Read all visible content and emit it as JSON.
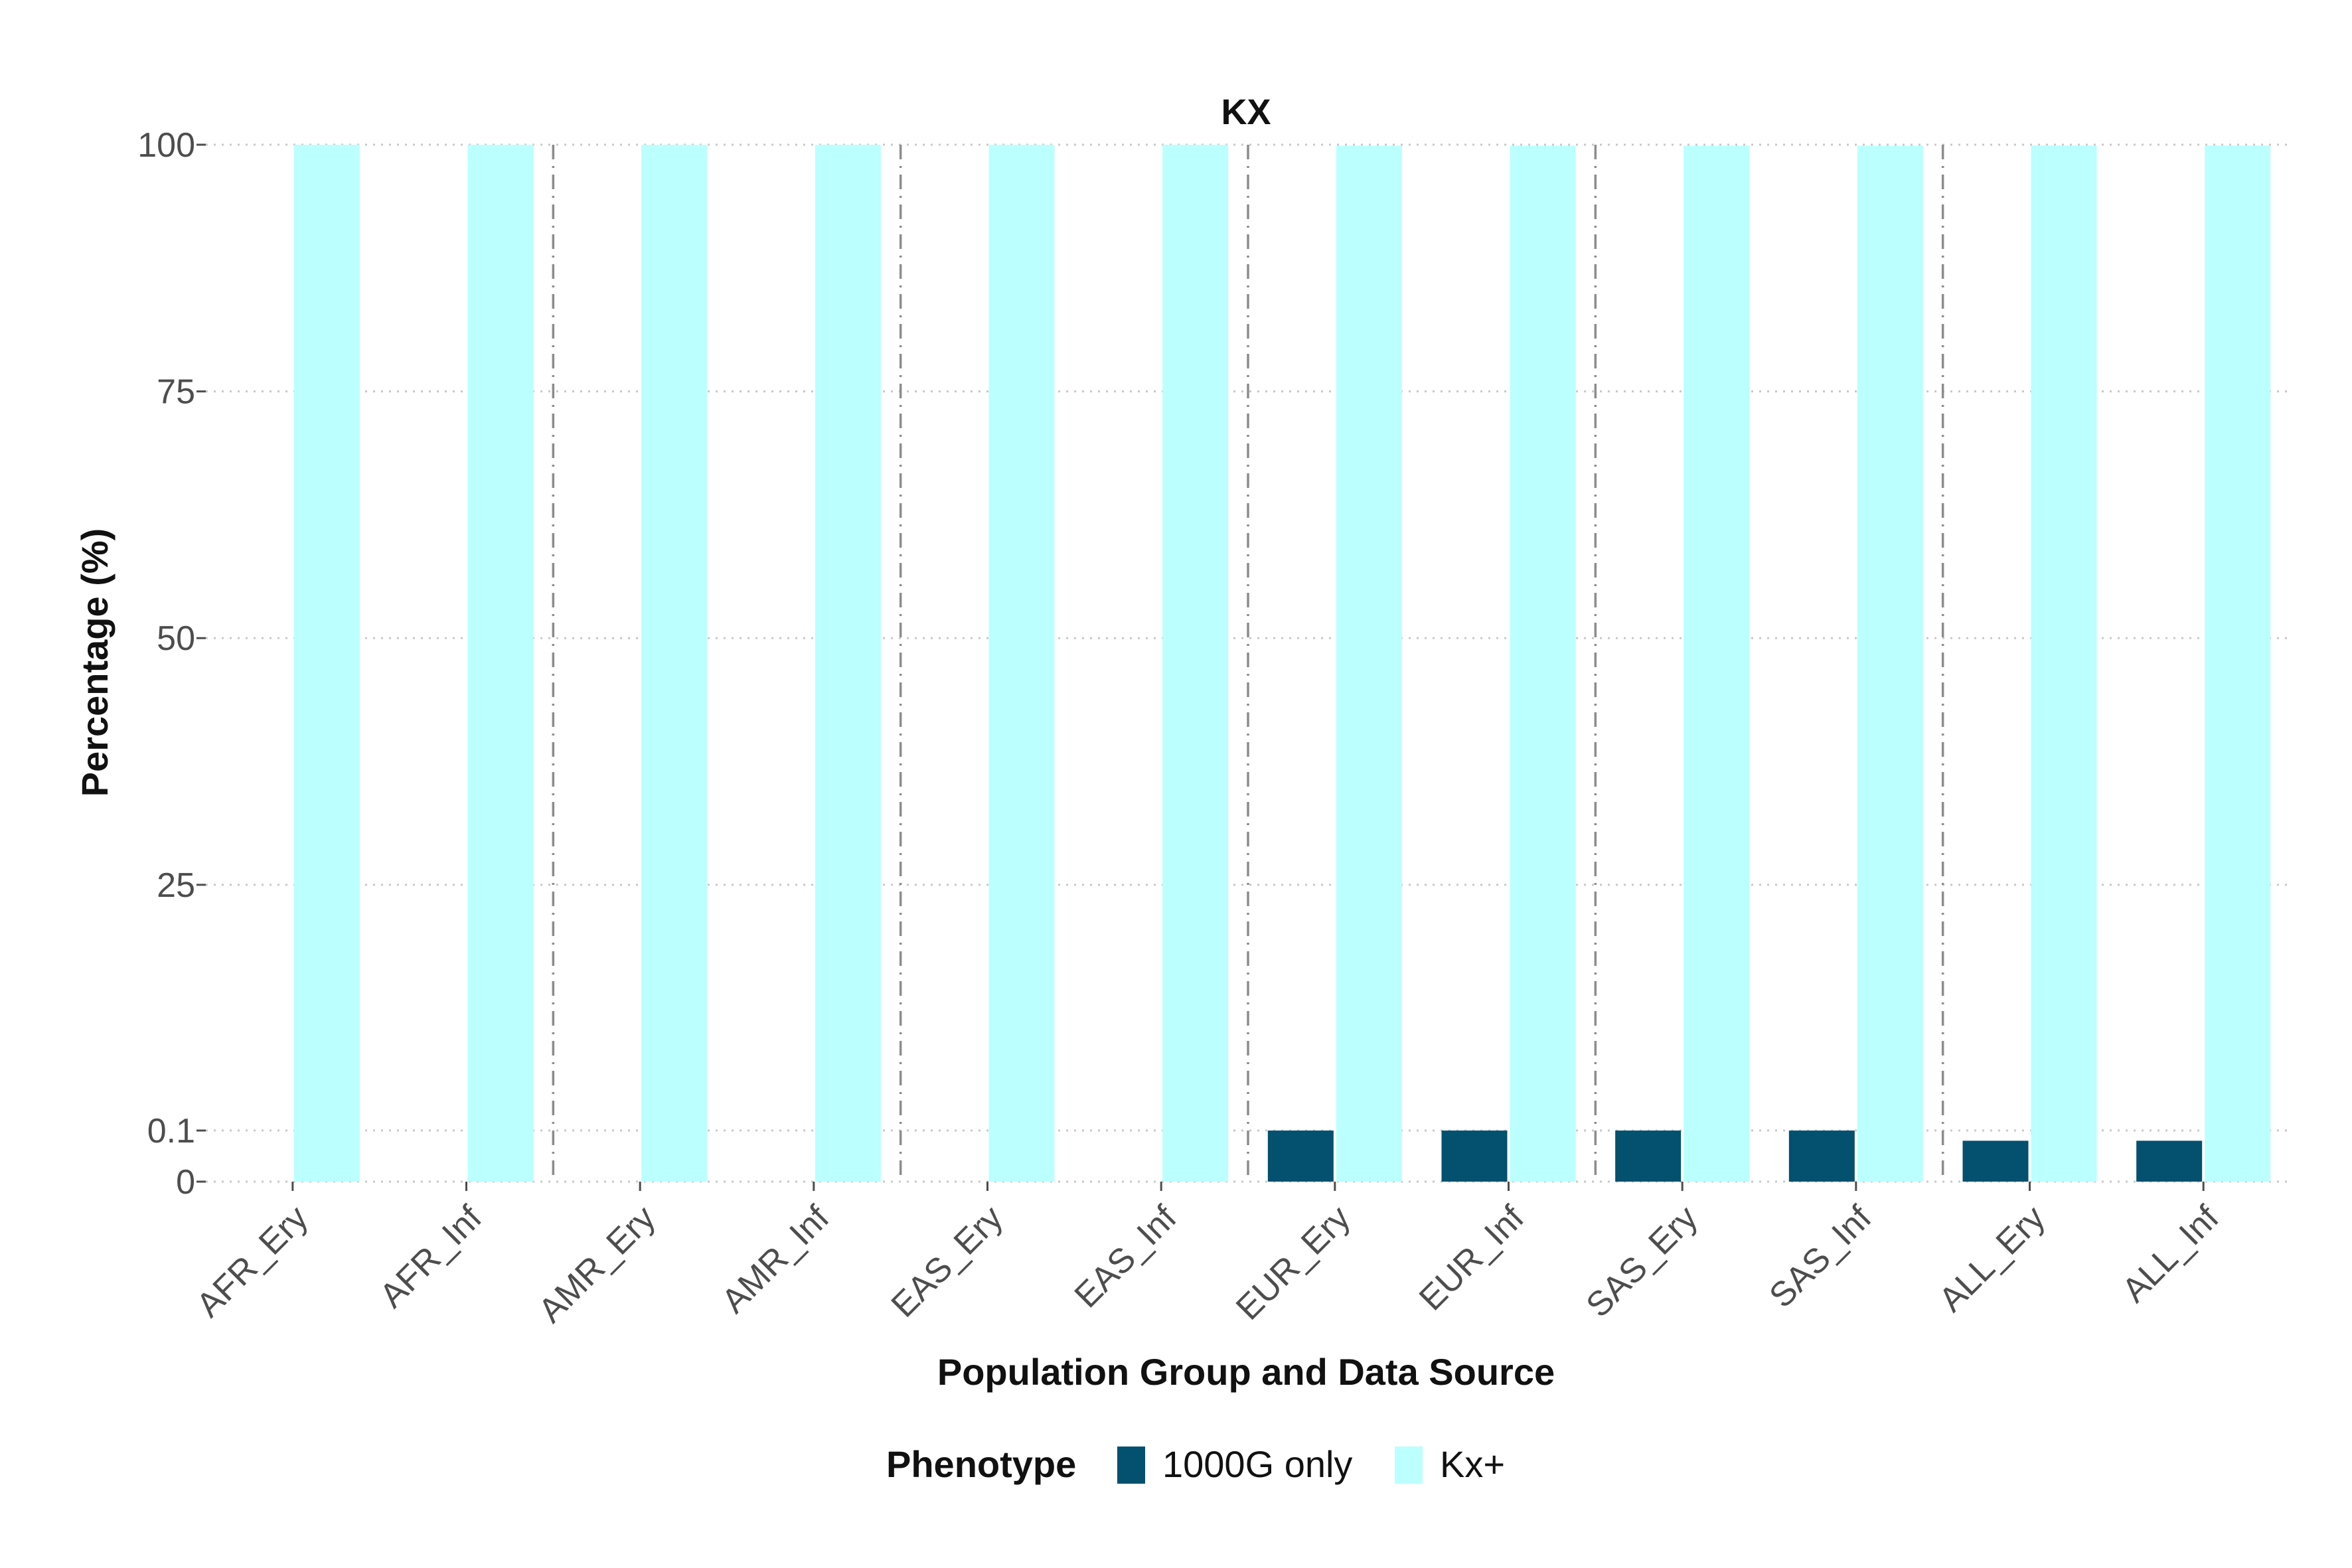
{
  "chart_data": {
    "type": "bar",
    "title": "KX",
    "xlabel": "Population Group and Data Source",
    "ylabel": "Percentage (%)",
    "categories": [
      "AFR_Ery",
      "AFR_Inf",
      "AMR_Ery",
      "AMR_Inf",
      "EAS_Ery",
      "EAS_Inf",
      "EUR_Ery",
      "EUR_Inf",
      "SAS_Ery",
      "SAS_Inf",
      "ALL_Ery",
      "ALL_Inf"
    ],
    "series": [
      {
        "name": "1000G only",
        "color": "#03506f",
        "values": [
          0,
          0,
          0,
          0,
          0,
          0,
          0.1,
          0.1,
          0.1,
          0.1,
          0.08,
          0.08
        ]
      },
      {
        "name": "Kx+",
        "color": "#bbffff",
        "values": [
          100,
          100,
          100,
          100,
          100,
          100,
          99.9,
          99.9,
          99.9,
          99.9,
          99.92,
          99.92
        ]
      }
    ],
    "y_ticks": [
      {
        "label": "0",
        "value": 0
      },
      {
        "label": "0.1",
        "value": 0.1
      },
      {
        "label": "25",
        "value": 25
      },
      {
        "label": "50",
        "value": 50
      },
      {
        "label": "75",
        "value": 75
      },
      {
        "label": "100",
        "value": 100
      }
    ],
    "y_scale": "piecewise: 0–0.1 expanded, 0.1–100 linear",
    "ylim": [
      0,
      100
    ],
    "legend": {
      "title": "Phenotype",
      "position": "bottom"
    },
    "grid": "horizontal dotted",
    "group_separators": "dash-dot vertical lines between population groups"
  }
}
